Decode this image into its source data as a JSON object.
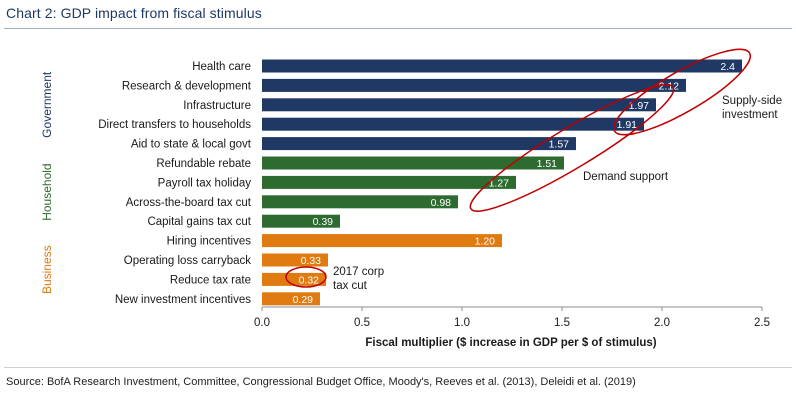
{
  "title": "Chart 2: GDP impact from fiscal stimulus",
  "source": "Source: BofA Research Investment, Committee, Congressional Budget Office, Moody's, Reeves et al. (2013), Deleidi et al. (2019)",
  "chart_data": {
    "type": "bar",
    "orientation": "horizontal",
    "categories": [
      "Health care",
      "Research & development",
      "Infrastructure",
      "Direct transfers to households",
      "Aid to state & local govt",
      "Refundable rebate",
      "Payroll tax holiday",
      "Across-the-board tax cut",
      "Capital gains tax cut",
      "Hiring incentives",
      "Operating loss carryback",
      "Reduce tax rate",
      "New investment incentives"
    ],
    "values": [
      2.4,
      2.12,
      1.97,
      1.91,
      1.57,
      1.51,
      1.27,
      0.98,
      0.39,
      1.2,
      0.33,
      0.32,
      0.29
    ],
    "value_labels": [
      "2.4",
      "2.12",
      "1.97",
      "1.91",
      "1.57",
      "1.51",
      "1.27",
      "0.98",
      "0.39",
      "1.20",
      "0.33",
      "0.32",
      "0.29"
    ],
    "groups": [
      {
        "name": "Government",
        "start": 0,
        "end": 4,
        "color": "#1f3864"
      },
      {
        "name": "Household",
        "start": 5,
        "end": 8,
        "color": "#2e6b30"
      },
      {
        "name": "Business",
        "start": 9,
        "end": 12,
        "color": "#e07b12"
      }
    ],
    "xlabel": "Fiscal multiplier ($ increase in GDP per $ of stimulus)",
    "xlim": [
      0,
      2.5
    ],
    "xticks": [
      "0.0",
      "0.5",
      "1.0",
      "1.5",
      "2.0",
      "2.5"
    ],
    "annotations": [
      {
        "text_lines": [
          "Supply-side",
          "investment"
        ]
      },
      {
        "text_lines": [
          "Demand support"
        ]
      },
      {
        "text_lines": [
          "2017 corp",
          "tax cut"
        ]
      }
    ],
    "annotation_color": "#c00000",
    "grid": false
  }
}
